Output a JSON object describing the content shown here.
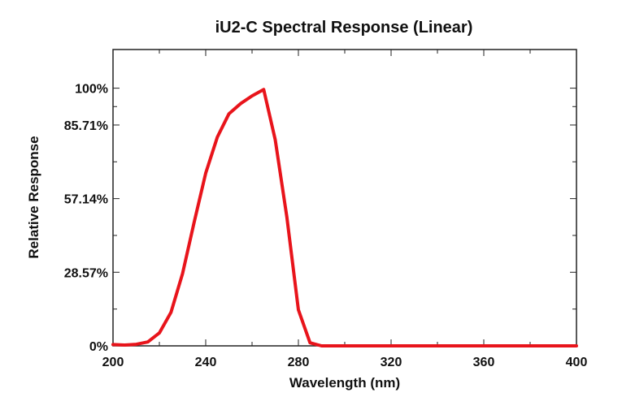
{
  "chart_data": {
    "type": "line",
    "title": "iU2-C Spectral Response (Linear)",
    "xlabel": "Wavelength (nm)",
    "ylabel": "Relative Response",
    "xlim": [
      200,
      400
    ],
    "ylim": [
      0,
      115
    ],
    "x_ticks": [
      {
        "value": 200,
        "label": "200"
      },
      {
        "value": 240,
        "label": "240"
      },
      {
        "value": 280,
        "label": "280"
      },
      {
        "value": 320,
        "label": "320"
      },
      {
        "value": 360,
        "label": "360"
      },
      {
        "value": 400,
        "label": "400"
      }
    ],
    "y_ticks": [
      {
        "value": 0,
        "label": "0%"
      },
      {
        "value": 28.57,
        "label": "28.57%"
      },
      {
        "value": 57.14,
        "label": "57.14%"
      },
      {
        "value": 85.71,
        "label": "85.71%"
      },
      {
        "value": 100,
        "label": "100%"
      }
    ],
    "grid": false,
    "series": [
      {
        "color": "#e8141b",
        "x": [
          200,
          205,
          210,
          215,
          220,
          225,
          230,
          235,
          240,
          245,
          250,
          255,
          260,
          265,
          270,
          275,
          280,
          285,
          290,
          300,
          320,
          340,
          360,
          380,
          400
        ],
        "y": [
          0.5,
          0.3,
          0.6,
          1.5,
          5,
          13,
          28,
          48,
          67,
          81,
          90,
          94,
          97,
          99.5,
          80,
          50,
          14,
          1.2,
          0,
          0,
          0,
          0,
          0,
          0,
          0
        ]
      }
    ]
  }
}
